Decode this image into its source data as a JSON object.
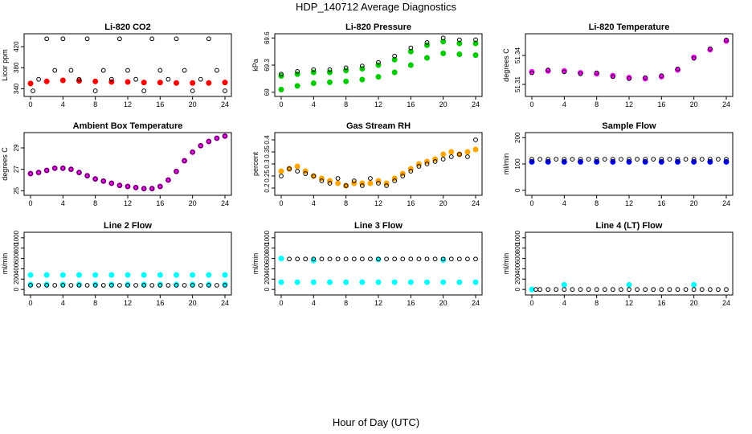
{
  "title": "HDP_140712  Average Diagnostics",
  "xlabel": "Hour of Day (UTC)",
  "colors": {
    "red": "#ff0000",
    "green": "#00cc00",
    "magenta": "#ff00ff",
    "orange": "#ffa500",
    "blue": "#0000ff",
    "cyan": "#00ffff",
    "black": "#000000"
  },
  "chart_data": [
    {
      "type": "scatter",
      "title": "Li-820 CO2",
      "ylabel": "Licor ppm",
      "xlim": [
        0,
        24
      ],
      "ylim": [
        330,
        440
      ],
      "xticks": [
        0,
        4,
        8,
        12,
        16,
        20,
        24
      ],
      "yticks": [
        340,
        380,
        420
      ],
      "series": [
        {
          "color": "red",
          "marker": "filled",
          "x": [
            0,
            2,
            4,
            6,
            8,
            10,
            12,
            14,
            16,
            18,
            20,
            22,
            24
          ],
          "y": [
            350,
            354,
            356,
            355,
            354,
            353,
            353,
            352,
            352,
            351,
            351,
            351,
            352
          ]
        },
        {
          "color": "black",
          "marker": "open",
          "x": [
            0.3,
            1,
            2,
            3,
            4,
            5,
            6,
            7,
            8,
            9,
            10,
            11,
            12,
            13,
            14,
            15,
            16,
            17,
            18,
            19,
            20,
            21,
            22,
            23,
            24
          ],
          "y": [
            336,
            358,
            435,
            375,
            435,
            375,
            358,
            435,
            336,
            375,
            358,
            435,
            375,
            358,
            336,
            435,
            375,
            358,
            435,
            375,
            336,
            358,
            435,
            375,
            336
          ]
        }
      ]
    },
    {
      "type": "scatter",
      "title": "Li-820 Pressure",
      "ylabel": "kPa",
      "xlim": [
        0,
        24
      ],
      "ylim": [
        68.98,
        69.62
      ],
      "xticks": [
        0,
        4,
        8,
        12,
        16,
        20,
        24
      ],
      "yticks": [
        69.0,
        69.3,
        69.6
      ],
      "series": [
        {
          "color": "green",
          "marker": "filled",
          "x": [
            0,
            2,
            4,
            6,
            8,
            10,
            12,
            14,
            16,
            18,
            20,
            22,
            24
          ],
          "y": [
            69.18,
            69.2,
            69.22,
            69.22,
            69.24,
            69.26,
            69.3,
            69.36,
            69.45,
            69.52,
            69.56,
            69.54,
            69.54
          ]
        },
        {
          "color": "green",
          "marker": "filled",
          "x": [
            0,
            2,
            4,
            6,
            8,
            10,
            12,
            14,
            16,
            18,
            20,
            22,
            24
          ],
          "y": [
            69.03,
            69.07,
            69.1,
            69.11,
            69.12,
            69.14,
            69.17,
            69.22,
            69.3,
            69.38,
            69.43,
            69.42,
            69.41
          ]
        },
        {
          "color": "black",
          "marker": "open",
          "x": [
            0,
            2,
            4,
            6,
            8,
            10,
            12,
            14,
            16,
            18,
            20,
            22,
            24
          ],
          "y": [
            69.2,
            69.23,
            69.25,
            69.25,
            69.27,
            69.29,
            69.33,
            69.4,
            69.49,
            69.55,
            69.6,
            69.58,
            69.58
          ]
        }
      ]
    },
    {
      "type": "scatter",
      "title": "Li-820 Temperature",
      "ylabel": "degrees C",
      "xlim": [
        0,
        24
      ],
      "ylim": [
        51.3,
        51.36
      ],
      "xticks": [
        0,
        4,
        8,
        12,
        16,
        20,
        24
      ],
      "yticks": [
        51.31,
        51.34
      ],
      "series": [
        {
          "color": "magenta",
          "marker": "filled",
          "x": [
            0,
            2,
            4,
            6,
            8,
            10,
            12,
            14,
            16,
            18,
            20,
            22,
            24
          ],
          "y": [
            51.323,
            51.324,
            51.324,
            51.322,
            51.321,
            51.319,
            51.317,
            51.316,
            51.318,
            51.325,
            51.338,
            51.346,
            51.355
          ]
        },
        {
          "color": "black",
          "marker": "open",
          "x": [
            0,
            2,
            4,
            6,
            8,
            10,
            12,
            14,
            16,
            18,
            20,
            22,
            24
          ],
          "y": [
            51.322,
            51.325,
            51.323,
            51.321,
            51.322,
            51.318,
            51.316,
            51.317,
            51.319,
            51.326,
            51.337,
            51.347,
            51.356
          ]
        }
      ]
    },
    {
      "type": "scatter",
      "title": "Ambient Box Temperature",
      "ylabel": "degrees C",
      "xlim": [
        0,
        24
      ],
      "ylim": [
        24.8,
        30.2
      ],
      "xticks": [
        0,
        4,
        8,
        12,
        16,
        20,
        24
      ],
      "yticks": [
        25,
        27,
        29
      ],
      "series": [
        {
          "color": "magenta",
          "marker": "filled",
          "x": [
            0,
            1,
            2,
            3,
            4,
            5,
            6,
            7,
            8,
            9,
            10,
            11,
            12,
            13,
            14,
            15,
            16,
            17,
            18,
            19,
            20,
            21,
            22,
            23,
            24
          ],
          "y": [
            26.6,
            26.7,
            26.9,
            27.1,
            27.1,
            27.0,
            26.7,
            26.4,
            26.1,
            25.9,
            25.7,
            25.5,
            25.4,
            25.3,
            25.2,
            25.2,
            25.4,
            26.0,
            26.8,
            27.8,
            28.6,
            29.2,
            29.6,
            29.9,
            30.1
          ]
        },
        {
          "color": "black",
          "marker": "open",
          "x": [
            0,
            1,
            2,
            3,
            4,
            5,
            6,
            7,
            8,
            9,
            10,
            11,
            12,
            13,
            14,
            15,
            16,
            17,
            18,
            19,
            20,
            21,
            22,
            23,
            24
          ],
          "y": [
            26.6,
            26.7,
            26.9,
            27.1,
            27.1,
            27.0,
            26.7,
            26.4,
            26.1,
            25.9,
            25.7,
            25.5,
            25.4,
            25.3,
            25.2,
            25.2,
            25.4,
            26.0,
            26.8,
            27.8,
            28.6,
            29.2,
            29.6,
            29.9,
            30.1
          ]
        }
      ]
    },
    {
      "type": "scatter",
      "title": "Gas Stream RH",
      "ylabel": "percent",
      "xlim": [
        0,
        24
      ],
      "ylim": [
        0.18,
        0.42
      ],
      "xticks": [
        0,
        4,
        8,
        12,
        16,
        20,
        24
      ],
      "yticks": [
        0.2,
        0.25,
        0.3,
        0.35,
        0.4
      ],
      "series": [
        {
          "color": "orange",
          "marker": "filled",
          "x": [
            0,
            1,
            2,
            3,
            4,
            5,
            6,
            7,
            8,
            9,
            10,
            11,
            12,
            13,
            14,
            15,
            16,
            17,
            18,
            19,
            20,
            21,
            22,
            23,
            24
          ],
          "y": [
            0.27,
            0.28,
            0.29,
            0.27,
            0.25,
            0.24,
            0.23,
            0.22,
            0.21,
            0.22,
            0.22,
            0.22,
            0.23,
            0.22,
            0.24,
            0.26,
            0.28,
            0.3,
            0.31,
            0.32,
            0.34,
            0.35,
            0.34,
            0.35,
            0.36
          ]
        },
        {
          "color": "black",
          "marker": "open",
          "x": [
            0,
            1,
            2,
            3,
            4,
            5,
            6,
            7,
            8,
            9,
            10,
            11,
            12,
            13,
            14,
            15,
            16,
            17,
            18,
            19,
            20,
            21,
            22,
            23,
            24
          ],
          "y": [
            0.25,
            0.28,
            0.27,
            0.26,
            0.25,
            0.23,
            0.22,
            0.24,
            0.21,
            0.23,
            0.21,
            0.24,
            0.22,
            0.21,
            0.23,
            0.25,
            0.27,
            0.29,
            0.3,
            0.31,
            0.32,
            0.33,
            0.34,
            0.33,
            0.4
          ]
        }
      ]
    },
    {
      "type": "scatter",
      "title": "Sample Flow",
      "ylabel": "ml/min",
      "xlim": [
        0,
        24
      ],
      "ylim": [
        -10,
        210
      ],
      "xticks": [
        0,
        4,
        8,
        12,
        16,
        20,
        24
      ],
      "yticks": [
        0,
        100,
        200
      ],
      "series": [
        {
          "color": "blue",
          "marker": "filled",
          "x": [
            0,
            2,
            4,
            6,
            8,
            10,
            12,
            14,
            16,
            18,
            20,
            22,
            24
          ],
          "y": [
            108,
            108,
            108,
            108,
            108,
            108,
            108,
            108,
            108,
            108,
            108,
            108,
            108
          ]
        },
        {
          "color": "black",
          "marker": "open",
          "x": [
            0,
            1,
            2,
            3,
            4,
            5,
            6,
            7,
            8,
            9,
            10,
            11,
            12,
            13,
            14,
            15,
            16,
            17,
            18,
            19,
            20,
            21,
            22,
            23,
            24
          ],
          "y": [
            118,
            118,
            118,
            118,
            118,
            118,
            118,
            118,
            118,
            118,
            118,
            118,
            118,
            118,
            118,
            118,
            118,
            118,
            118,
            118,
            118,
            118,
            118,
            118,
            118
          ]
        }
      ]
    },
    {
      "type": "scatter",
      "title": "Line 2 Flow",
      "ylabel": "ml/min",
      "xlim": [
        0,
        24
      ],
      "ylim": [
        -60,
        1060
      ],
      "xticks": [
        0,
        4,
        8,
        12,
        16,
        20,
        24
      ],
      "yticks": [
        0,
        200,
        400,
        600,
        800,
        1000
      ],
      "series": [
        {
          "color": "cyan",
          "marker": "filled",
          "x": [
            0,
            2,
            4,
            6,
            8,
            10,
            12,
            14,
            16,
            18,
            20,
            22,
            24
          ],
          "y": [
            280,
            280,
            280,
            280,
            280,
            280,
            280,
            280,
            280,
            280,
            280,
            280,
            280
          ]
        },
        {
          "color": "cyan",
          "marker": "filled",
          "x": [
            0,
            2,
            4,
            6,
            8,
            10,
            12,
            14,
            16,
            18,
            20,
            22,
            24
          ],
          "y": [
            95,
            95,
            95,
            95,
            95,
            95,
            95,
            95,
            95,
            95,
            95,
            95,
            95
          ]
        },
        {
          "color": "black",
          "marker": "open",
          "x": [
            0,
            1,
            2,
            3,
            4,
            5,
            6,
            7,
            8,
            9,
            10,
            11,
            12,
            13,
            14,
            15,
            16,
            17,
            18,
            19,
            20,
            21,
            22,
            23,
            24
          ],
          "y": [
            80,
            80,
            80,
            80,
            80,
            80,
            80,
            80,
            80,
            80,
            80,
            80,
            80,
            80,
            80,
            80,
            80,
            80,
            80,
            80,
            80,
            80,
            80,
            80,
            80
          ]
        }
      ]
    },
    {
      "type": "scatter",
      "title": "Line 3 Flow",
      "ylabel": "ml/min",
      "xlim": [
        0,
        24
      ],
      "ylim": [
        -60,
        1060
      ],
      "xticks": [
        0,
        4,
        8,
        12,
        16,
        20,
        24
      ],
      "yticks": [
        0,
        200,
        400,
        600,
        800,
        1000
      ],
      "series": [
        {
          "color": "cyan",
          "marker": "filled",
          "x": [
            0,
            2,
            4,
            6,
            8,
            10,
            12,
            14,
            16,
            18,
            20,
            22,
            24
          ],
          "y": [
            140,
            140,
            140,
            140,
            140,
            140,
            140,
            140,
            140,
            140,
            140,
            140,
            140
          ]
        },
        {
          "color": "cyan",
          "marker": "filled",
          "x": [
            0,
            4,
            12,
            20
          ],
          "y": [
            600,
            560,
            580,
            570
          ]
        },
        {
          "color": "black",
          "marker": "open",
          "x": [
            1,
            2,
            3,
            4,
            5,
            6,
            7,
            8,
            9,
            10,
            11,
            12,
            13,
            14,
            15,
            16,
            17,
            18,
            19,
            20,
            21,
            22,
            23,
            24
          ],
          "y": [
            590,
            590,
            590,
            590,
            590,
            590,
            590,
            590,
            590,
            590,
            590,
            590,
            590,
            590,
            590,
            590,
            590,
            590,
            590,
            590,
            590,
            590,
            590,
            590
          ]
        }
      ]
    },
    {
      "type": "scatter",
      "title": "Line 4 (LT) Flow",
      "ylabel": "ml/min",
      "xlim": [
        0,
        24
      ],
      "ylim": [
        -60,
        1060
      ],
      "xticks": [
        0,
        4,
        8,
        12,
        16,
        20,
        24
      ],
      "yticks": [
        0,
        200,
        400,
        600,
        800,
        1000
      ],
      "series": [
        {
          "color": "cyan",
          "marker": "filled",
          "x": [
            0,
            4,
            12,
            20
          ],
          "y": [
            0,
            90,
            90,
            90
          ]
        },
        {
          "color": "black",
          "marker": "open",
          "x": [
            0.5,
            1,
            2,
            3,
            4,
            5,
            6,
            7,
            8,
            9,
            10,
            11,
            12,
            13,
            14,
            15,
            16,
            17,
            18,
            19,
            20,
            21,
            22,
            23,
            24
          ],
          "y": [
            0,
            0,
            0,
            0,
            0,
            0,
            0,
            0,
            0,
            0,
            0,
            0,
            0,
            0,
            0,
            0,
            0,
            0,
            0,
            0,
            0,
            0,
            0,
            0,
            0
          ]
        }
      ]
    }
  ]
}
